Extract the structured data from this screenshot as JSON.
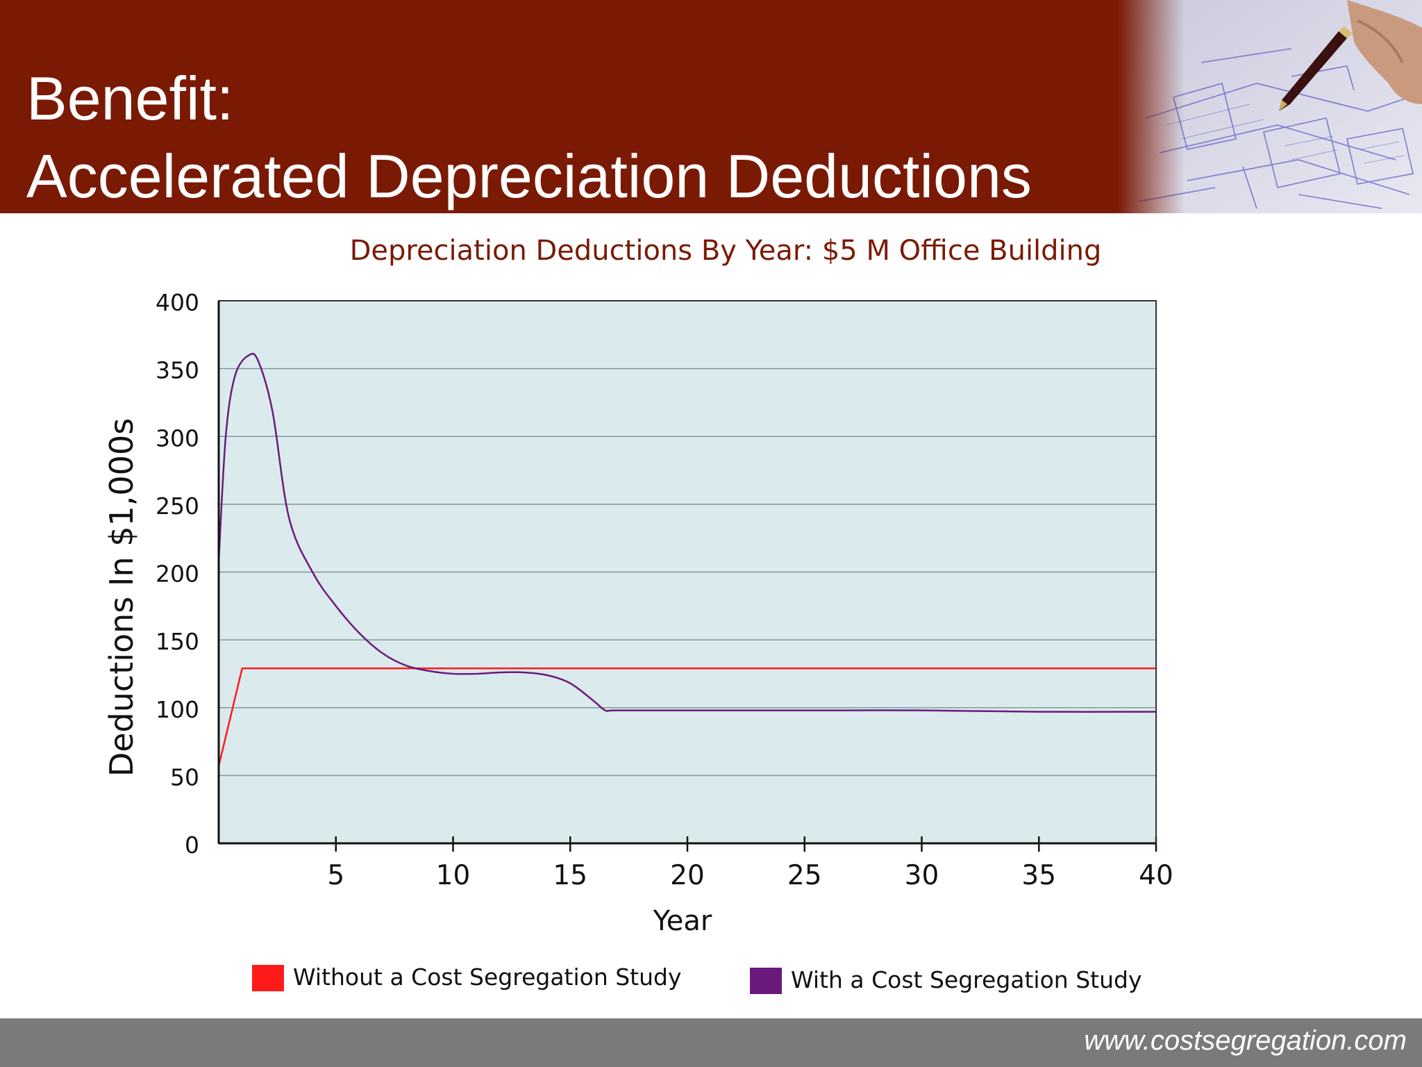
{
  "slide": {
    "title_line1": "Benefit:",
    "title_line2": "Accelerated Depreciation Deductions",
    "footer_url": "www.costsegregation.com",
    "header_color": "#7a1a05",
    "footer_color": "#7b7a7a",
    "photo_description_icon": "blueprint-drawing-image"
  },
  "chart_data": {
    "type": "line",
    "title": "Depreciation Deductions By Year: $5 M Office Building",
    "xlabel": "Year",
    "ylabel": "Deductions In $1,000s",
    "xlim": [
      0,
      40
    ],
    "ylim": [
      0,
      400
    ],
    "xticks": [
      5,
      10,
      15,
      20,
      25,
      30,
      35,
      40
    ],
    "yticks": [
      0,
      50,
      100,
      150,
      200,
      250,
      300,
      350,
      400
    ],
    "grid": true,
    "plot_background": "#dbeaec",
    "legend_position": "bottom",
    "series": [
      {
        "name": "Without a Cost Segregation Study",
        "color": "#ff1a1a",
        "x": [
          0,
          1,
          40
        ],
        "y": [
          57,
          129,
          129
        ]
      },
      {
        "name": "With a Cost Segregation Study",
        "color": "#6a1a7c",
        "x": [
          0,
          0.3,
          0.7,
          1.3,
          1.7,
          2.3,
          3,
          4,
          5,
          6,
          7,
          8,
          9,
          10,
          11,
          12,
          13,
          14,
          15,
          16,
          16.5,
          17,
          20,
          25,
          30,
          35,
          40
        ],
        "y": [
          208,
          300,
          345,
          360,
          355,
          318,
          240,
          200,
          175,
          155,
          140,
          131,
          127,
          125,
          125,
          126,
          126,
          124,
          118,
          105,
          98,
          98,
          98,
          98,
          98,
          97,
          97
        ]
      }
    ]
  }
}
